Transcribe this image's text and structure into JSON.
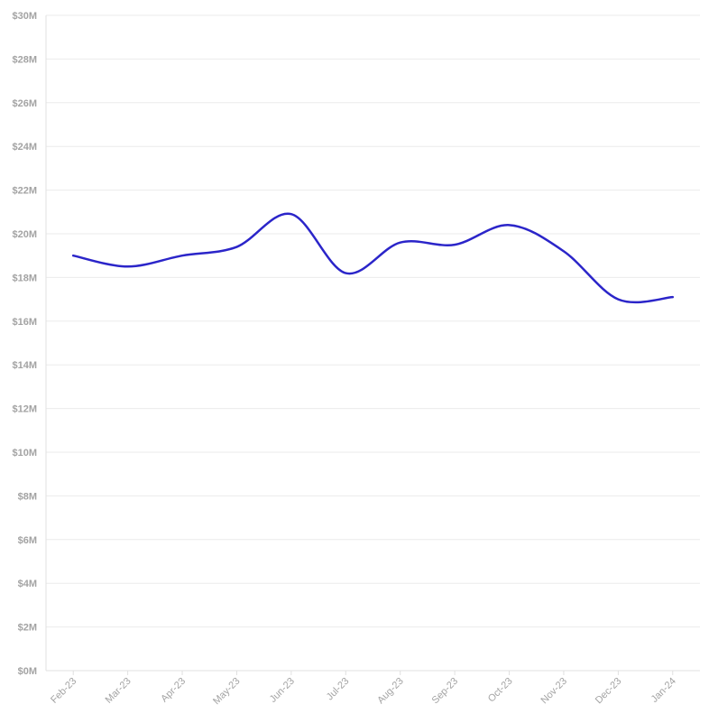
{
  "chart_data": {
    "type": "line",
    "categories": [
      "Feb-23",
      "Mar-23",
      "Apr-23",
      "May-23",
      "Jun-23",
      "Jul-23",
      "Aug-23",
      "Sep-23",
      "Oct-23",
      "Nov-23",
      "Dec-23",
      "Jan-24"
    ],
    "y_tick_labels": [
      "$0M",
      "$2M",
      "$4M",
      "$6M",
      "$8M",
      "$10M",
      "$12M",
      "$14M",
      "$16M",
      "$18M",
      "$20M",
      "$22M",
      "$24M",
      "$26M",
      "$28M",
      "$30M"
    ],
    "series": [
      {
        "values": [
          19.0,
          18.5,
          19.0,
          19.4,
          20.9,
          18.2,
          19.6,
          19.5,
          20.4,
          19.2,
          17.0,
          17.1
        ]
      }
    ],
    "ylim": [
      0,
      30
    ],
    "y_unit": "millions USD",
    "line_color": "#2b25c9",
    "grid": true,
    "xlabel": "",
    "ylabel": ""
  }
}
